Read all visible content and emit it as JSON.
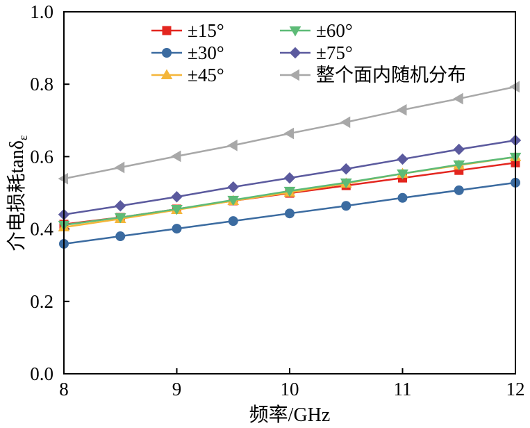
{
  "chart_data": {
    "type": "line",
    "xlabel": "频率/GHz",
    "ylabel": "介电损耗tanδ",
    "ylabel_subscript": "ε",
    "xlim": [
      8,
      12
    ],
    "ylim": [
      0.0,
      1.0
    ],
    "xticks": [
      "8",
      "9",
      "10",
      "11",
      "12"
    ],
    "yticks": [
      "0.0",
      "0.2",
      "0.4",
      "0.6",
      "0.8",
      "1.0"
    ],
    "grid": false,
    "legend_position": "top",
    "x": [
      8,
      8.5,
      9,
      9.5,
      10,
      10.5,
      11,
      11.5,
      12
    ],
    "series": [
      {
        "name": "±15°",
        "color": "#e3261f",
        "marker": "square",
        "values": [
          0.413,
          0.432,
          0.455,
          0.478,
          0.499,
          0.52,
          0.541,
          0.562,
          0.583
        ]
      },
      {
        "name": "±30°",
        "color": "#3b6ba0",
        "marker": "circle",
        "values": [
          0.359,
          0.38,
          0.401,
          0.422,
          0.443,
          0.464,
          0.486,
          0.507,
          0.528
        ]
      },
      {
        "name": "±45°",
        "color": "#f4b63a",
        "marker": "triangle-up",
        "values": [
          0.405,
          0.428,
          0.453,
          0.478,
          0.501,
          0.526,
          0.553,
          0.576,
          0.599
        ]
      },
      {
        "name": "±60°",
        "color": "#5dbb77",
        "marker": "triangle-down",
        "values": [
          0.411,
          0.432,
          0.455,
          0.48,
          0.505,
          0.528,
          0.553,
          0.578,
          0.599
        ]
      },
      {
        "name": "±75°",
        "color": "#5b5a9e",
        "marker": "diamond",
        "values": [
          0.44,
          0.464,
          0.489,
          0.516,
          0.541,
          0.566,
          0.593,
          0.62,
          0.645
        ]
      },
      {
        "name": "整个面内随机分布",
        "color": "#a8a8a8",
        "marker": "triangle-left",
        "values": [
          0.539,
          0.57,
          0.601,
          0.631,
          0.664,
          0.695,
          0.729,
          0.76,
          0.793
        ]
      }
    ]
  }
}
